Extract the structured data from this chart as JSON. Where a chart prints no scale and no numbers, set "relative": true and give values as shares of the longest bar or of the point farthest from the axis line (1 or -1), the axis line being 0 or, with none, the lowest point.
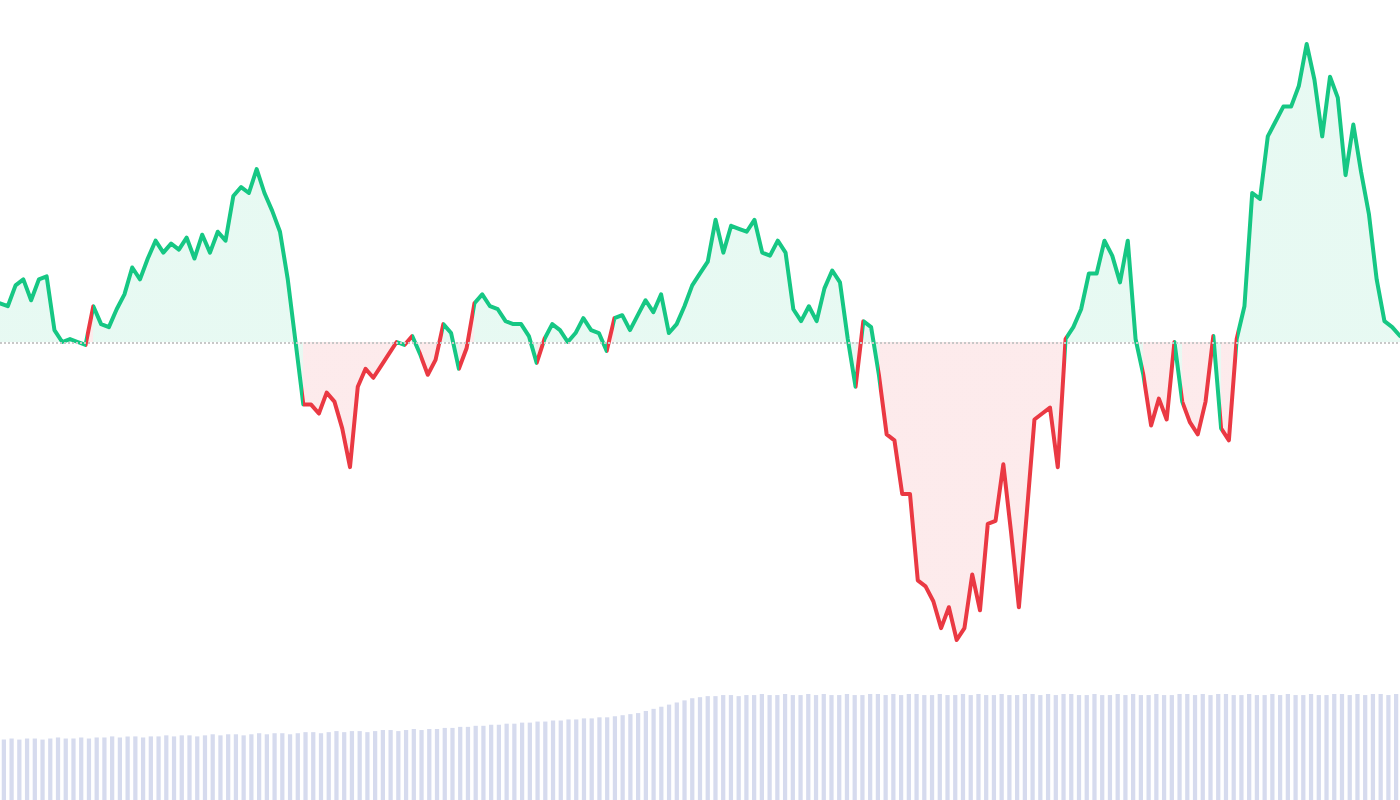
{
  "chart_data": [
    {
      "type": "area",
      "relative": true,
      "ref_lines": [
        {
          "axis": "y",
          "value": 0,
          "color": "#c8c8c8",
          "line_style": "dotted"
        }
      ],
      "categories": [
        null,
        null,
        null,
        null,
        null,
        null,
        null,
        null,
        null,
        null,
        null,
        null,
        null,
        null,
        null,
        null,
        null,
        null,
        null,
        null,
        null,
        null,
        null,
        null,
        null,
        null,
        null,
        null,
        null,
        null,
        null,
        null,
        null,
        null,
        null,
        null,
        null,
        null,
        null,
        null,
        null,
        null,
        null,
        null,
        null,
        null,
        null,
        null,
        null,
        null,
        null,
        null,
        null,
        null,
        null,
        null,
        null,
        null,
        null,
        null,
        null,
        null,
        null,
        null,
        null,
        null,
        null,
        null,
        null,
        null,
        null,
        null,
        null,
        null,
        null,
        null,
        null,
        null,
        null,
        null,
        null,
        null,
        null,
        null,
        null,
        null,
        null,
        null,
        null,
        null,
        null,
        null,
        null,
        null,
        null,
        null,
        null,
        null,
        null,
        null,
        null,
        null,
        null,
        null,
        null,
        null,
        null,
        null,
        null,
        null,
        null,
        null,
        null,
        null,
        null,
        null,
        null,
        null,
        null,
        null,
        null,
        null,
        null,
        null,
        null,
        null,
        null,
        null,
        null,
        null,
        null,
        null,
        null,
        null,
        null,
        null,
        null,
        null,
        null,
        null,
        null,
        null,
        null,
        null,
        null,
        null,
        null,
        null,
        null,
        null,
        null,
        null,
        null,
        null,
        null,
        null,
        null,
        null,
        null,
        null,
        null,
        null,
        null,
        null,
        null,
        null,
        null,
        null,
        null,
        null,
        null,
        null,
        null,
        null,
        null,
        null,
        null,
        null,
        null,
        null,
        null
      ],
      "series": [
        {
          "color": "#16c784",
          "values": [
            0.13,
            0.12,
            0.19,
            0.21,
            0.14,
            0.21,
            0.22,
            0.04,
            0.0,
            0.01,
            0.0,
            -0.01,
            0.12,
            0.06,
            0.05,
            0.11,
            0.16,
            0.25,
            0.21,
            0.28,
            0.34,
            0.3,
            0.33,
            0.31,
            0.35,
            0.28,
            0.36,
            0.3,
            0.37,
            0.34,
            0.49,
            0.52,
            0.5,
            0.58,
            0.5,
            0.44,
            0.37,
            0.21,
            0.0,
            -0.21,
            -0.21,
            -0.24,
            -0.17,
            -0.2,
            -0.29,
            -0.42,
            -0.15,
            -0.09,
            -0.12,
            -0.08,
            -0.04,
            0.0,
            -0.01,
            0.02,
            -0.04,
            -0.11,
            -0.06,
            0.06,
            0.03,
            -0.09,
            -0.02,
            0.13,
            0.16,
            0.12,
            0.11,
            0.07,
            0.06,
            0.06,
            0.02,
            -0.07,
            0.01,
            0.06,
            0.04,
            0.0,
            0.03,
            0.08,
            0.04,
            0.03,
            -0.03,
            0.08,
            0.09,
            0.04,
            0.09,
            0.14,
            0.1,
            0.16,
            0.03,
            0.06,
            0.12,
            0.19,
            0.23,
            0.27,
            0.41,
            0.3,
            0.39,
            0.38,
            0.37,
            0.41,
            0.3,
            0.29,
            0.34,
            0.3,
            0.11,
            0.07,
            0.12,
            0.07,
            0.18,
            0.24,
            0.2,
            0.01,
            -0.15,
            0.07,
            0.05,
            -0.11,
            -0.31,
            -0.33,
            -0.51,
            -0.51,
            -0.8,
            -0.82,
            -0.87,
            -0.96,
            -0.89,
            -1.0,
            -0.96,
            -0.78,
            -0.9,
            -0.61,
            -0.6,
            -0.41,
            -0.64,
            -0.89,
            -0.58,
            -0.26,
            -0.24,
            -0.22,
            -0.42,
            0.01,
            0.05,
            0.11,
            0.23,
            0.23,
            0.34,
            0.29,
            0.2,
            0.34,
            0.01,
            -0.11,
            -0.28,
            -0.19,
            -0.26,
            0.0,
            -0.2,
            -0.27,
            -0.31,
            -0.2,
            0.02,
            -0.29,
            -0.33,
            0.01,
            0.12,
            0.5,
            0.48,
            0.69,
            0.74,
            0.79,
            0.79,
            0.86,
            1.0,
            0.88,
            0.69,
            0.89,
            0.82,
            0.56,
            0.73,
            0.57,
            0.43,
            0.21,
            0.07,
            0.05,
            0.02
          ],
          "colors": [
            "#16c784",
            "#16c784",
            "#16c784",
            "#16c784",
            "#16c784",
            "#16c784",
            "#16c784",
            "#16c784",
            "#16c784",
            "#16c784",
            "#16c784",
            "#ea3943",
            "#16c784",
            "#16c784",
            "#16c784",
            "#16c784",
            "#16c784",
            "#16c784",
            "#16c784",
            "#16c784",
            "#16c784",
            "#16c784",
            "#16c784",
            "#16c784",
            "#16c784",
            "#16c784",
            "#16c784",
            "#16c784",
            "#16c784",
            "#16c784",
            "#16c784",
            "#16c784",
            "#16c784",
            "#16c784",
            "#16c784",
            "#16c784",
            "#16c784",
            "#16c784",
            "#16c784",
            "#ea3943",
            "#ea3943",
            "#ea3943",
            "#ea3943",
            "#ea3943",
            "#ea3943",
            "#ea3943",
            "#ea3943",
            "#ea3943",
            "#ea3943",
            "#ea3943",
            "#ea3943",
            "#16c784",
            "#ea3943",
            "#16c784",
            "#ea3943",
            "#ea3943",
            "#ea3943",
            "#16c784",
            "#16c784",
            "#ea3943",
            "#ea3943",
            "#16c784",
            "#16c784",
            "#16c784",
            "#16c784",
            "#16c784",
            "#16c784",
            "#16c784",
            "#16c784",
            "#ea3943",
            "#16c784",
            "#16c784",
            "#16c784",
            "#16c784",
            "#16c784",
            "#16c784",
            "#16c784",
            "#16c784",
            "#ea3943",
            "#16c784",
            "#16c784",
            "#16c784",
            "#16c784",
            "#16c784",
            "#16c784",
            "#16c784",
            "#16c784",
            "#16c784",
            "#16c784",
            "#16c784",
            "#16c784",
            "#16c784",
            "#16c784",
            "#16c784",
            "#16c784",
            "#16c784",
            "#16c784",
            "#16c784",
            "#16c784",
            "#16c784",
            "#16c784",
            "#16c784",
            "#16c784",
            "#16c784",
            "#16c784",
            "#16c784",
            "#16c784",
            "#16c784",
            "#16c784",
            "#16c784",
            "#ea3943",
            "#16c784",
            "#16c784",
            "#ea3943",
            "#ea3943",
            "#ea3943",
            "#ea3943",
            "#ea3943",
            "#ea3943",
            "#ea3943",
            "#ea3943",
            "#ea3943",
            "#ea3943",
            "#ea3943",
            "#ea3943",
            "#ea3943",
            "#ea3943",
            "#ea3943",
            "#ea3943",
            "#ea3943",
            "#ea3943",
            "#ea3943",
            "#ea3943",
            "#ea3943",
            "#ea3943",
            "#ea3943",
            "#ea3943",
            "#16c784",
            "#16c784",
            "#16c784",
            "#16c784",
            "#16c784",
            "#16c784",
            "#16c784",
            "#16c784",
            "#16c784",
            "#16c784",
            "#ea3943",
            "#ea3943",
            "#ea3943",
            "#ea3943",
            "#16c784",
            "#ea3943",
            "#ea3943",
            "#ea3943",
            "#ea3943",
            "#16c784",
            "#ea3943",
            "#ea3943",
            "#16c784",
            "#16c784",
            "#16c784",
            "#16c784",
            "#16c784",
            "#16c784",
            "#16c784",
            "#16c784",
            "#16c784",
            "#16c784",
            "#16c784",
            "#16c784",
            "#16c784",
            "#16c784",
            "#16c784",
            "#16c784",
            "#16c784",
            "#16c784",
            "#16c784",
            "#16c784",
            "#16c784",
            "#16c784"
          ]
        }
      ]
    },
    {
      "type": "bar",
      "relative": true,
      "categories": [
        null,
        null,
        null,
        null,
        null,
        null,
        null,
        null,
        null,
        null,
        null,
        null,
        null,
        null,
        null,
        null,
        null,
        null,
        null,
        null,
        null,
        null,
        null,
        null,
        null,
        null,
        null,
        null,
        null,
        null,
        null,
        null,
        null,
        null,
        null,
        null,
        null,
        null,
        null,
        null,
        null,
        null,
        null,
        null,
        null,
        null,
        null,
        null,
        null,
        null,
        null,
        null,
        null,
        null,
        null,
        null,
        null,
        null,
        null,
        null,
        null,
        null,
        null,
        null,
        null,
        null,
        null,
        null,
        null,
        null,
        null,
        null,
        null,
        null,
        null,
        null,
        null,
        null,
        null,
        null,
        null,
        null,
        null,
        null,
        null,
        null,
        null,
        null,
        null,
        null,
        null,
        null,
        null,
        null,
        null,
        null,
        null,
        null,
        null,
        null,
        null,
        null,
        null,
        null,
        null,
        null,
        null,
        null,
        null,
        null,
        null,
        null,
        null,
        null,
        null,
        null,
        null,
        null,
        null,
        null,
        null,
        null,
        null,
        null,
        null,
        null,
        null,
        null,
        null,
        null,
        null,
        null,
        null,
        null,
        null,
        null,
        null,
        null,
        null,
        null,
        null,
        null,
        null,
        null,
        null,
        null,
        null,
        null,
        null,
        null,
        null,
        null,
        null,
        null,
        null,
        null,
        null,
        null,
        null,
        null,
        null,
        null,
        null,
        null,
        null,
        null,
        null,
        null,
        null,
        null,
        null,
        null,
        null,
        null,
        null,
        null,
        null,
        null,
        null,
        null,
        null
      ],
      "series": [
        {
          "color": "#d6dbee",
          "values": [
            0.57,
            0.58,
            0.57,
            0.58,
            0.58,
            0.57,
            0.58,
            0.59,
            0.58,
            0.58,
            0.59,
            0.58,
            0.59,
            0.59,
            0.6,
            0.59,
            0.6,
            0.6,
            0.59,
            0.6,
            0.6,
            0.61,
            0.6,
            0.61,
            0.61,
            0.6,
            0.61,
            0.62,
            0.61,
            0.62,
            0.62,
            0.61,
            0.62,
            0.63,
            0.62,
            0.63,
            0.63,
            0.62,
            0.63,
            0.64,
            0.64,
            0.63,
            0.64,
            0.65,
            0.64,
            0.65,
            0.65,
            0.64,
            0.65,
            0.66,
            0.66,
            0.65,
            0.66,
            0.67,
            0.66,
            0.67,
            0.67,
            0.68,
            0.68,
            0.69,
            0.69,
            0.7,
            0.7,
            0.71,
            0.71,
            0.72,
            0.72,
            0.73,
            0.73,
            0.74,
            0.74,
            0.75,
            0.75,
            0.76,
            0.76,
            0.77,
            0.77,
            0.78,
            0.78,
            0.79,
            0.8,
            0.81,
            0.82,
            0.84,
            0.86,
            0.88,
            0.9,
            0.92,
            0.94,
            0.96,
            0.97,
            0.98,
            0.98,
            0.99,
            0.99,
            0.98,
            0.99,
            0.99,
            1.0,
            0.99,
            0.99,
            1.0,
            0.99,
            0.99,
            1.0,
            0.99,
            1.0,
            0.99,
            0.99,
            1.0,
            0.99,
            0.99,
            1.0,
            1.0,
            0.99,
            1.0,
            0.99,
            1.0,
            1.0,
            0.99,
            0.99,
            1.0,
            0.99,
            0.99,
            1.0,
            0.99,
            1.0,
            0.99,
            0.99,
            1.0,
            0.99,
            0.99,
            1.0,
            1.0,
            0.99,
            1.0,
            0.99,
            1.0,
            1.0,
            0.99,
            0.99,
            1.0,
            0.99,
            0.99,
            1.0,
            0.99,
            1.0,
            0.99,
            0.99,
            1.0,
            0.99,
            0.99,
            1.0,
            1.0,
            0.99,
            1.0,
            0.99,
            1.0,
            1.0,
            0.99,
            0.99,
            1.0,
            0.99,
            0.99,
            1.0,
            0.99,
            1.0,
            0.99,
            0.99,
            1.0,
            0.99,
            0.99,
            1.0,
            1.0,
            0.99,
            1.0,
            0.99,
            1.0,
            1.0,
            0.99,
            1.0
          ]
        }
      ]
    }
  ]
}
